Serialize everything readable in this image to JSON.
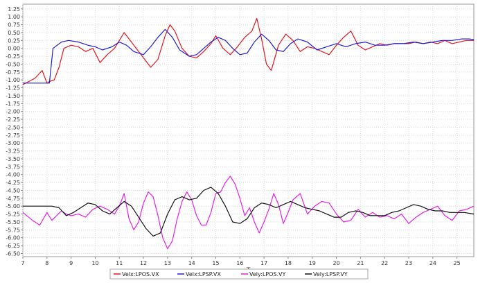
{
  "chart_data": {
    "type": "line",
    "title": "",
    "xlabel": "T",
    "ylabel": "",
    "xlim": [
      7,
      25.7
    ],
    "ylim": [
      -6.6,
      1.4
    ],
    "x_ticks": [
      "7",
      "8",
      "9",
      "10",
      "11",
      "12",
      "13",
      "14",
      "15",
      "16",
      "17",
      "18",
      "19",
      "20",
      "21",
      "22",
      "23",
      "24",
      "25"
    ],
    "y_ticks": [
      "1.25",
      "1.00",
      "0.75",
      "0.50",
      "0.25",
      "0.00",
      "-0.25",
      "-0.50",
      "-0.75",
      "-1.00",
      "-1.25",
      "-1.50",
      "-1.75",
      "-2.00",
      "-2.25",
      "-2.50",
      "-2.75",
      "-3.00",
      "-3.25",
      "-3.50",
      "-3.75",
      "-4.00",
      "-4.25",
      "-4.50",
      "-4.75",
      "-5.00",
      "-5.25",
      "-5.50",
      "-5.75",
      "-6.00",
      "-6.25",
      "-6.50"
    ],
    "grid": true,
    "legend_position": "bottom-center",
    "series": [
      {
        "name": "Velx:LPOS.VX",
        "color": "#e8141c",
        "x": [
          7.0,
          7.5,
          7.8,
          8.0,
          8.1,
          8.3,
          8.5,
          8.7,
          9.0,
          9.3,
          9.6,
          9.9,
          10.2,
          10.5,
          10.8,
          11.0,
          11.2,
          11.5,
          11.8,
          12.0,
          12.3,
          12.6,
          12.9,
          13.1,
          13.3,
          13.6,
          13.9,
          14.2,
          14.5,
          14.8,
          15.0,
          15.3,
          15.6,
          15.9,
          16.2,
          16.5,
          16.7,
          16.9,
          17.1,
          17.3,
          17.6,
          17.9,
          18.2,
          18.5,
          18.8,
          19.1,
          19.4,
          19.7,
          20.0,
          20.3,
          20.6,
          20.9,
          21.2,
          21.5,
          21.8,
          22.1,
          22.4,
          22.7,
          23.0,
          23.3,
          23.6,
          23.9,
          24.2,
          24.5,
          24.8,
          25.1,
          25.4,
          25.7
        ],
        "y": [
          -1.15,
          -0.95,
          -0.7,
          -1.1,
          -1.05,
          -1.0,
          -0.6,
          0.0,
          0.1,
          0.05,
          -0.1,
          0.0,
          -0.45,
          -0.2,
          0.0,
          0.25,
          0.5,
          0.2,
          -0.1,
          -0.3,
          -0.6,
          -0.35,
          0.4,
          0.75,
          0.55,
          0.0,
          -0.25,
          -0.3,
          -0.1,
          0.15,
          0.4,
          0.0,
          -0.2,
          0.05,
          0.35,
          0.55,
          0.95,
          0.3,
          -0.5,
          -0.7,
          0.1,
          0.45,
          0.25,
          -0.1,
          0.05,
          0.0,
          -0.1,
          -0.2,
          0.1,
          0.35,
          0.55,
          0.1,
          -0.05,
          0.05,
          0.15,
          0.1,
          0.15,
          0.15,
          0.15,
          0.2,
          0.15,
          0.2,
          0.15,
          0.25,
          0.15,
          0.2,
          0.25,
          0.25
        ]
      },
      {
        "name": "Velx:LPSP.VX",
        "color": "#1c1ce0",
        "x": [
          7.0,
          8.1,
          8.25,
          8.6,
          8.9,
          9.3,
          9.7,
          10.0,
          10.3,
          10.7,
          11.0,
          11.3,
          11.6,
          12.0,
          12.3,
          12.6,
          12.9,
          13.2,
          13.5,
          13.9,
          14.2,
          14.5,
          14.8,
          15.1,
          15.4,
          15.7,
          16.0,
          16.3,
          16.6,
          16.9,
          17.2,
          17.5,
          17.8,
          18.1,
          18.4,
          18.8,
          19.2,
          19.6,
          20.0,
          20.4,
          20.8,
          21.2,
          21.6,
          22.0,
          22.4,
          22.8,
          23.2,
          23.6,
          24.0,
          24.4,
          24.8,
          25.2,
          25.5,
          25.7
        ],
        "y": [
          -1.1,
          -1.1,
          0.0,
          0.2,
          0.25,
          0.2,
          0.1,
          0.05,
          -0.05,
          0.05,
          0.2,
          0.1,
          -0.1,
          -0.2,
          0.05,
          0.35,
          0.6,
          0.35,
          -0.05,
          -0.25,
          -0.2,
          0.0,
          0.2,
          0.35,
          0.25,
          0.0,
          -0.2,
          -0.15,
          0.2,
          0.45,
          0.25,
          -0.05,
          -0.1,
          0.15,
          0.3,
          0.2,
          -0.05,
          0.05,
          0.15,
          0.05,
          0.15,
          0.2,
          0.1,
          0.1,
          0.15,
          0.15,
          0.2,
          0.15,
          0.2,
          0.25,
          0.25,
          0.3,
          0.3,
          0.28
        ]
      },
      {
        "name": "Vely:LPOS.VY",
        "color": "#e81ee8",
        "x": [
          7.0,
          7.4,
          7.7,
          8.0,
          8.2,
          8.4,
          8.6,
          8.8,
          9.0,
          9.3,
          9.6,
          9.9,
          10.2,
          10.5,
          10.8,
          11.0,
          11.2,
          11.4,
          11.6,
          11.8,
          12.0,
          12.2,
          12.4,
          12.6,
          12.8,
          13.0,
          13.2,
          13.4,
          13.6,
          13.8,
          14.0,
          14.2,
          14.4,
          14.6,
          14.8,
          15.0,
          15.2,
          15.4,
          15.6,
          15.8,
          16.0,
          16.2,
          16.4,
          16.6,
          16.8,
          17.0,
          17.2,
          17.4,
          17.6,
          17.8,
          18.0,
          18.2,
          18.5,
          18.8,
          19.1,
          19.4,
          19.7,
          20.0,
          20.3,
          20.6,
          20.9,
          21.2,
          21.5,
          21.8,
          22.1,
          22.4,
          22.7,
          23.0,
          23.3,
          23.6,
          23.9,
          24.2,
          24.5,
          24.8,
          25.1,
          25.4,
          25.7
        ],
        "y": [
          -5.2,
          -5.45,
          -5.6,
          -5.2,
          -5.45,
          -5.3,
          -5.15,
          -5.25,
          -5.3,
          -5.25,
          -5.35,
          -5.1,
          -5.0,
          -5.1,
          -5.25,
          -5.0,
          -4.6,
          -5.4,
          -5.75,
          -5.5,
          -4.9,
          -4.55,
          -4.7,
          -5.3,
          -6.0,
          -6.35,
          -6.1,
          -5.4,
          -4.85,
          -4.55,
          -4.8,
          -5.3,
          -5.6,
          -5.6,
          -5.2,
          -4.6,
          -4.55,
          -4.25,
          -4.05,
          -4.3,
          -4.75,
          -5.3,
          -5.05,
          -5.5,
          -5.85,
          -5.5,
          -5.1,
          -4.6,
          -4.95,
          -5.55,
          -5.2,
          -4.8,
          -4.6,
          -5.25,
          -5.0,
          -4.85,
          -4.9,
          -5.25,
          -5.5,
          -5.45,
          -5.1,
          -5.35,
          -5.2,
          -5.35,
          -5.3,
          -5.4,
          -5.25,
          -5.55,
          -5.35,
          -5.2,
          -5.1,
          -5.0,
          -5.3,
          -5.45,
          -5.15,
          -5.1,
          -5.0
        ]
      },
      {
        "name": "Vely:LPSP.VY",
        "color": "#111111",
        "x": [
          7.0,
          8.2,
          8.5,
          8.8,
          9.1,
          9.4,
          9.7,
          10.0,
          10.3,
          10.6,
          10.9,
          11.2,
          11.5,
          11.8,
          12.1,
          12.4,
          12.7,
          13.0,
          13.3,
          13.6,
          13.9,
          14.2,
          14.5,
          14.8,
          15.1,
          15.4,
          15.7,
          16.0,
          16.3,
          16.6,
          16.9,
          17.2,
          17.5,
          17.8,
          18.1,
          18.4,
          18.7,
          19.0,
          19.3,
          19.6,
          19.9,
          20.2,
          20.5,
          20.8,
          21.1,
          21.4,
          21.7,
          22.0,
          22.3,
          22.6,
          22.9,
          23.2,
          23.5,
          23.8,
          24.1,
          24.4,
          24.7,
          25.0,
          25.3,
          25.7
        ],
        "y": [
          -5.0,
          -5.0,
          -5.05,
          -5.3,
          -5.2,
          -5.05,
          -4.9,
          -4.95,
          -5.15,
          -5.25,
          -5.05,
          -4.85,
          -5.0,
          -5.35,
          -5.7,
          -5.95,
          -5.85,
          -5.25,
          -4.8,
          -4.7,
          -4.8,
          -4.75,
          -4.5,
          -4.4,
          -4.6,
          -5.0,
          -5.5,
          -5.55,
          -5.4,
          -5.05,
          -4.9,
          -4.95,
          -5.05,
          -4.95,
          -4.85,
          -4.95,
          -5.05,
          -5.1,
          -5.15,
          -5.25,
          -5.35,
          -5.35,
          -5.2,
          -5.15,
          -5.2,
          -5.3,
          -5.3,
          -5.3,
          -5.2,
          -5.15,
          -5.05,
          -4.95,
          -5.0,
          -5.1,
          -5.15,
          -5.15,
          -5.2,
          -5.2,
          -5.2,
          -5.25
        ]
      }
    ]
  }
}
